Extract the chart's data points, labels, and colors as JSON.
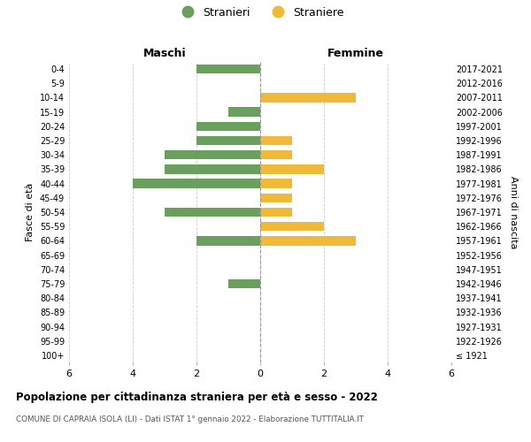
{
  "age_groups": [
    "100+",
    "95-99",
    "90-94",
    "85-89",
    "80-84",
    "75-79",
    "70-74",
    "65-69",
    "60-64",
    "55-59",
    "50-54",
    "45-49",
    "40-44",
    "35-39",
    "30-34",
    "25-29",
    "20-24",
    "15-19",
    "10-14",
    "5-9",
    "0-4"
  ],
  "birth_years": [
    "≤ 1921",
    "1922-1926",
    "1927-1931",
    "1932-1936",
    "1937-1941",
    "1942-1946",
    "1947-1951",
    "1952-1956",
    "1957-1961",
    "1962-1966",
    "1967-1971",
    "1972-1976",
    "1977-1981",
    "1982-1986",
    "1987-1991",
    "1992-1996",
    "1997-2001",
    "2002-2006",
    "2007-2011",
    "2012-2016",
    "2017-2021"
  ],
  "maschi": [
    0,
    0,
    0,
    0,
    0,
    1,
    0,
    0,
    2,
    0,
    3,
    0,
    4,
    3,
    3,
    2,
    2,
    1,
    0,
    0,
    2
  ],
  "femmine": [
    0,
    0,
    0,
    0,
    0,
    0,
    0,
    0,
    3,
    2,
    1,
    1,
    1,
    2,
    1,
    1,
    0,
    0,
    3,
    0,
    0
  ],
  "color_maschi": "#6a9f5e",
  "color_femmine": "#f0b93a",
  "title": "Popolazione per cittadinanza straniera per età e sesso - 2022",
  "subtitle": "COMUNE DI CAPRAIA ISOLA (LI) - Dati ISTAT 1° gennaio 2022 - Elaborazione TUTTITALIA.IT",
  "xlabel_left": "Maschi",
  "xlabel_right": "Femmine",
  "ylabel_left": "Fasce di età",
  "ylabel_right": "Anni di nascita",
  "legend_maschi": "Stranieri",
  "legend_femmine": "Straniere",
  "xlim": 6,
  "background_color": "#ffffff",
  "grid_color": "#cccccc"
}
